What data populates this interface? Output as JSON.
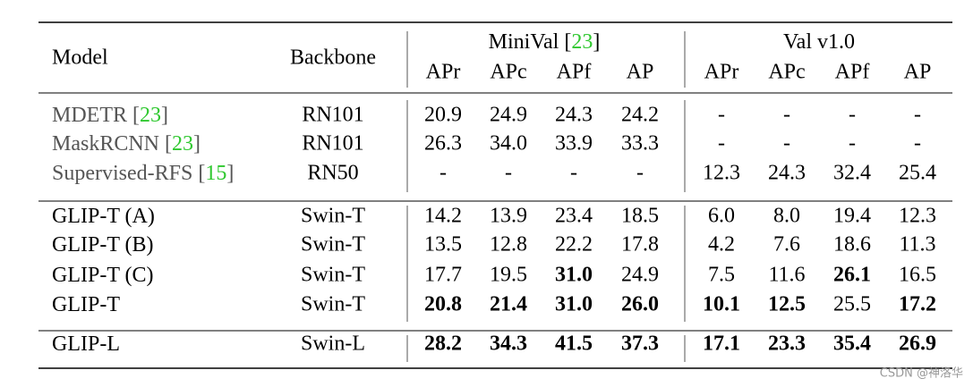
{
  "header": {
    "model": "Model",
    "backbone": "Backbone",
    "groups": [
      {
        "title": [
          "MiniVal [",
          "23",
          "]"
        ],
        "cite_index": 1,
        "columns": [
          "APr",
          "APc",
          "APf",
          "AP"
        ]
      },
      {
        "title": [
          "Val v1.0"
        ],
        "columns": [
          "APr",
          "APc",
          "APf",
          "AP"
        ]
      }
    ]
  },
  "table": {
    "row_groups": [
      {
        "muted": true,
        "rows": [
          {
            "model": [
              "MDETR [",
              "23",
              "]"
            ],
            "cite_index": 1,
            "backbone": "RN101",
            "cells": [
              "20.9",
              "24.9",
              "24.3",
              "24.2",
              "-",
              "-",
              "-",
              "-"
            ],
            "bold": []
          },
          {
            "model": [
              "MaskRCNN [",
              "23",
              "]"
            ],
            "cite_index": 1,
            "backbone": "RN101",
            "cells": [
              "26.3",
              "34.0",
              "33.9",
              "33.3",
              "-",
              "-",
              "-",
              "-"
            ],
            "bold": []
          },
          {
            "model": [
              "Supervised-RFS [",
              "15",
              "]"
            ],
            "cite_index": 1,
            "backbone": "RN50",
            "cells": [
              "-",
              "-",
              "-",
              "-",
              "12.3",
              "24.3",
              "32.4",
              "25.4"
            ],
            "bold": []
          }
        ]
      },
      {
        "muted": false,
        "rows": [
          {
            "model": [
              "GLIP-T (A)"
            ],
            "backbone": "Swin-T",
            "cells": [
              "14.2",
              "13.9",
              "23.4",
              "18.5",
              "6.0",
              "8.0",
              "19.4",
              "12.3"
            ],
            "bold": []
          },
          {
            "model": [
              "GLIP-T (B)"
            ],
            "backbone": "Swin-T",
            "cells": [
              "13.5",
              "12.8",
              "22.2",
              "17.8",
              "4.2",
              "7.6",
              "18.6",
              "11.3"
            ],
            "bold": []
          },
          {
            "model": [
              "GLIP-T (C)"
            ],
            "backbone": "Swin-T",
            "cells": [
              "17.7",
              "19.5",
              "31.0",
              "24.9",
              "7.5",
              "11.6",
              "26.1",
              "16.5"
            ],
            "bold": [
              2,
              6
            ]
          },
          {
            "model": [
              "GLIP-T"
            ],
            "backbone": "Swin-T",
            "cells": [
              "20.8",
              "21.4",
              "31.0",
              "26.0",
              "10.1",
              "12.5",
              "25.5",
              "17.2"
            ],
            "bold": [
              0,
              1,
              2,
              3,
              4,
              5,
              7
            ]
          }
        ]
      },
      {
        "muted": false,
        "rows": [
          {
            "model": [
              "GLIP-L"
            ],
            "backbone": "Swin-L",
            "cells": [
              "28.2",
              "34.3",
              "41.5",
              "37.3",
              "17.1",
              "23.3",
              "35.4",
              "26.9"
            ],
            "bold": [
              0,
              1,
              2,
              3,
              4,
              5,
              6,
              7
            ]
          }
        ]
      }
    ]
  },
  "watermark": "CSDN @神洛华"
}
